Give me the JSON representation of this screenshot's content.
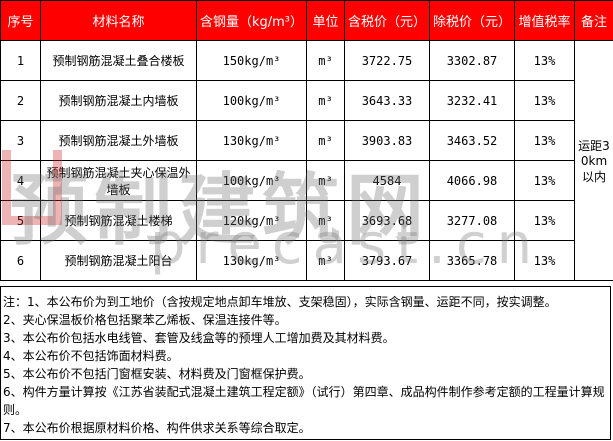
{
  "header": [
    "序号",
    "材料名称",
    "含钢量（kg/m³）",
    "单位",
    "含税价（元）",
    "除税价（元）",
    "增值税率",
    "备注"
  ],
  "rows": [
    {
      "no": "1",
      "name": "预制钢筋混凝土叠合楼板",
      "steel": "150kg/m³",
      "unit": "m³",
      "tax": "3722.75",
      "notax": "3302.87",
      "rate": "13%"
    },
    {
      "no": "2",
      "name": "预制钢筋混凝土内墙板",
      "steel": "100kg/m³",
      "unit": "m³",
      "tax": "3643.33",
      "notax": "3232.41",
      "rate": "13%"
    },
    {
      "no": "3",
      "name": "预制钢筋混凝土外墙板",
      "steel": "130kg/m³",
      "unit": "m³",
      "tax": "3903.83",
      "notax": "3463.52",
      "rate": "13%"
    },
    {
      "no": "4",
      "name": "预制钢筋混凝土夹心保温外墙板",
      "steel": "100kg/m³",
      "unit": "m³",
      "tax": "4584",
      "notax": "4066.98",
      "rate": "13%"
    },
    {
      "no": "5",
      "name": "预制钢筋混凝土楼梯",
      "steel": "120kg/m³",
      "unit": "m³",
      "tax": "3693.68",
      "notax": "3277.08",
      "rate": "13%"
    },
    {
      "no": "6",
      "name": "预制钢筋混凝土阳台",
      "steel": "130kg/m³",
      "unit": "m³",
      "tax": "3793.67",
      "notax": "3365.78",
      "rate": "13%"
    }
  ],
  "remark": "运距30km以内",
  "notes": [
    "注：1、本公布价为到工地价（含按规定地点卸车堆放、支架稳固），实际含钢量、运距不同，按实调整。",
    "2、夹心保温板价格包括聚苯乙烯板、保温连接件等。",
    "3、本公布价包括水电线管、套管及线盒等的预埋人工增加费及其材料费。",
    "4、本公布价不包括饰面材料费。",
    "5、本公布价不包括门窗框安装、材料费及门窗框保护费。",
    "6、构件方量计算按《江苏省装配式混凝土建筑工程定额》（试行）第四章、成品构件制作参考定额的工程量计算规则。",
    "7、本公布价根据原材料价格、构件供求关系等综合取定。"
  ],
  "watermark": {
    "text": "预制建筑网",
    "url": "precast.cn"
  },
  "colors": {
    "header_bg": "#ff0000",
    "header_text": "#ffffff"
  }
}
